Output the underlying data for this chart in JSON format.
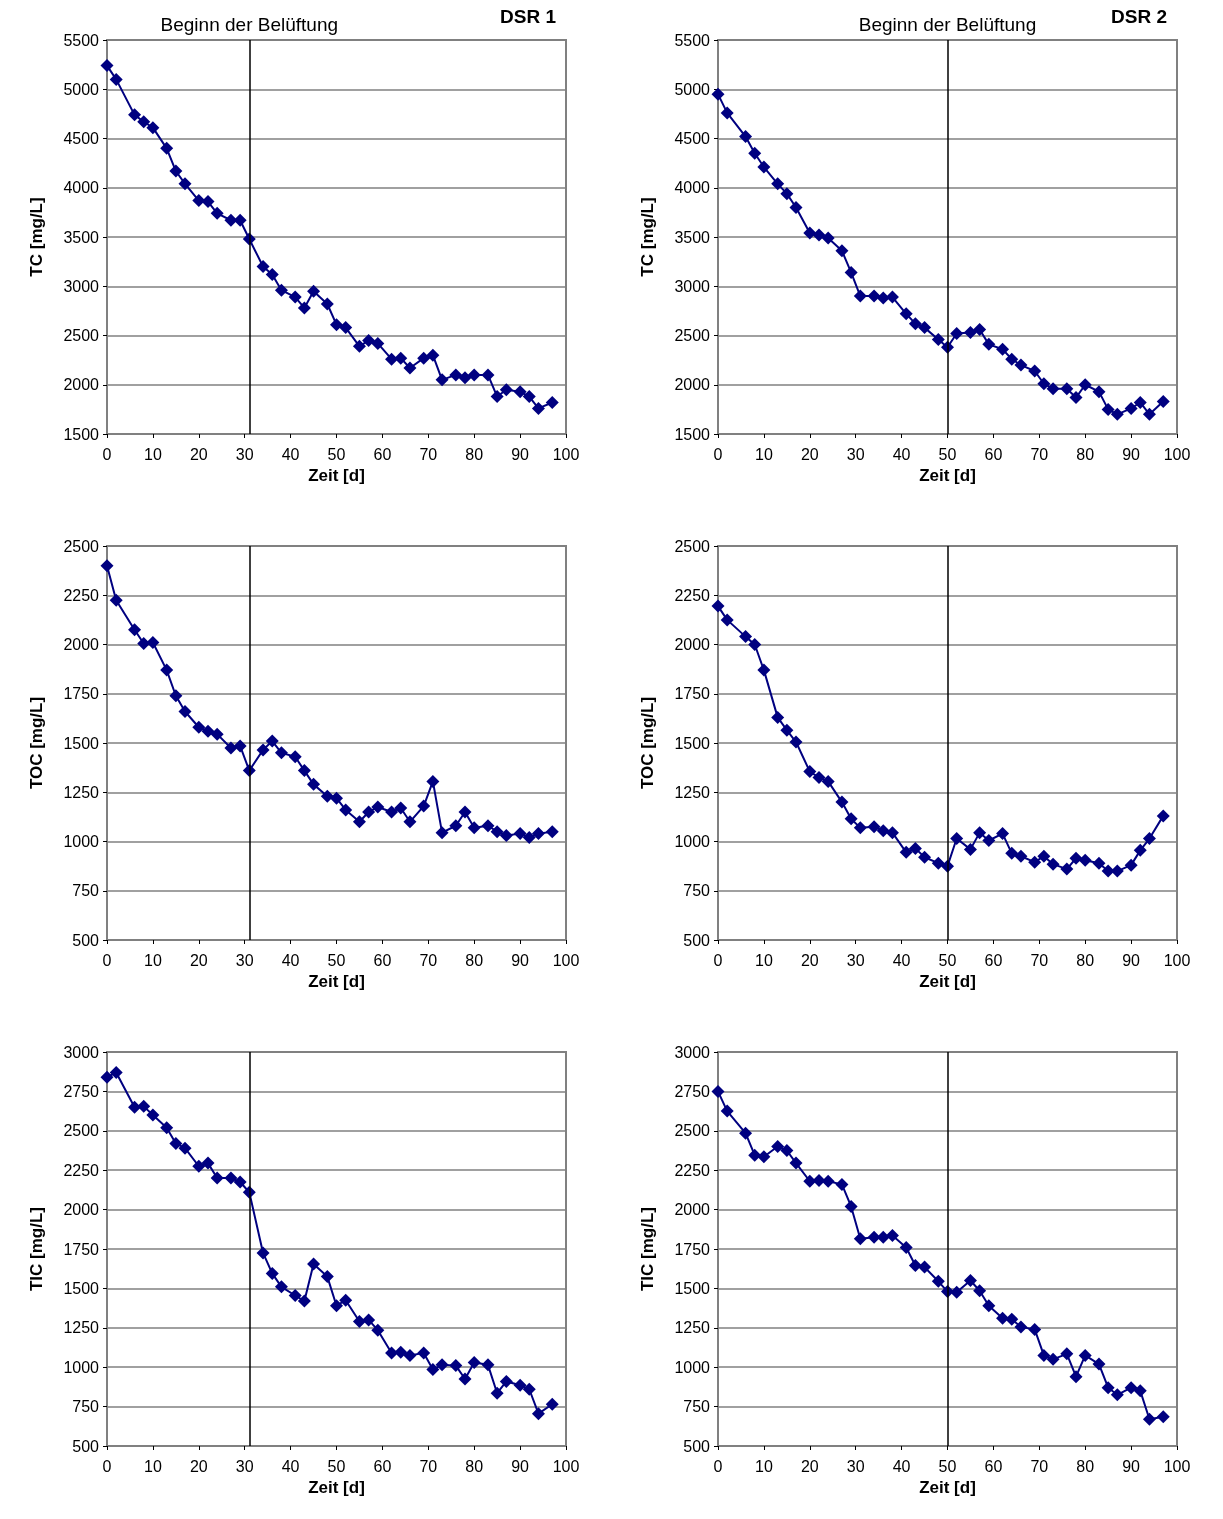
{
  "chart_data": [
    {
      "type": "line",
      "title": "DSR 1",
      "xlabel": "Zeit [d]",
      "ylabel": "TC [mg/L]",
      "color": "#000080",
      "marker": "diamond",
      "grid": "y",
      "x": [
        0,
        2,
        6,
        8,
        10,
        13,
        15,
        17,
        20,
        22,
        24,
        27,
        29,
        31,
        34,
        36,
        38,
        41,
        43,
        45,
        48,
        50,
        52,
        55,
        57,
        59,
        62,
        64,
        66,
        69,
        71,
        73,
        76,
        78,
        80,
        83,
        85,
        87,
        90,
        92,
        94,
        97
      ],
      "values": [
        5240,
        5100,
        4740,
        4670,
        4610,
        4400,
        4170,
        4040,
        3870,
        3860,
        3740,
        3670,
        3670,
        3480,
        3200,
        3120,
        2960,
        2890,
        2780,
        2950,
        2820,
        2610,
        2580,
        2390,
        2450,
        2420,
        2260,
        2270,
        2170,
        2270,
        2300,
        2050,
        2100,
        2070,
        2100,
        2100,
        1880,
        1950,
        1930,
        1880,
        1760,
        1820
      ],
      "xlim": [
        0,
        100
      ],
      "xticks": [
        0,
        10,
        20,
        30,
        40,
        50,
        60,
        70,
        80,
        90,
        100
      ],
      "ylim": [
        1500,
        5500
      ],
      "yticks": [
        1500,
        2000,
        2500,
        3000,
        3500,
        4000,
        4500,
        5000,
        5500
      ],
      "ref_lines": [
        {
          "axis": "x",
          "value": 31,
          "label": "Beginn der Belüftung",
          "color": "#000000"
        }
      ]
    },
    {
      "type": "line",
      "title": "DSR 2",
      "xlabel": "Zeit [d]",
      "ylabel": "TC [mg/L]",
      "color": "#000080",
      "marker": "diamond",
      "grid": "y",
      "x": [
        0,
        2,
        6,
        8,
        10,
        13,
        15,
        17,
        20,
        22,
        24,
        27,
        29,
        31,
        34,
        36,
        38,
        41,
        43,
        45,
        48,
        50,
        52,
        55,
        57,
        59,
        62,
        64,
        66,
        69,
        71,
        73,
        76,
        78,
        80,
        83,
        85,
        87,
        90,
        92,
        94,
        97
      ],
      "values": [
        4950,
        4760,
        4520,
        4350,
        4210,
        4040,
        3940,
        3800,
        3540,
        3520,
        3490,
        3360,
        3140,
        2900,
        2900,
        2880,
        2890,
        2720,
        2620,
        2580,
        2460,
        2380,
        2520,
        2530,
        2560,
        2410,
        2360,
        2260,
        2200,
        2140,
        2010,
        1960,
        1960,
        1870,
        2000,
        1930,
        1750,
        1700,
        1760,
        1820,
        1700,
        1830
      ],
      "xlim": [
        0,
        100
      ],
      "xticks": [
        0,
        10,
        20,
        30,
        40,
        50,
        60,
        70,
        80,
        90,
        100
      ],
      "ylim": [
        1500,
        5500
      ],
      "yticks": [
        1500,
        2000,
        2500,
        3000,
        3500,
        4000,
        4500,
        5000,
        5500
      ],
      "ref_lines": [
        {
          "axis": "x",
          "value": 50,
          "label": "Beginn der Belüftung",
          "color": "#000000"
        }
      ]
    },
    {
      "type": "line",
      "xlabel": "Zeit [d]",
      "ylabel": "TOC [mg/L]",
      "color": "#000080",
      "marker": "diamond",
      "grid": "y",
      "x": [
        0,
        2,
        6,
        8,
        10,
        13,
        15,
        17,
        20,
        22,
        24,
        27,
        29,
        31,
        34,
        36,
        38,
        41,
        43,
        45,
        48,
        50,
        52,
        55,
        57,
        59,
        62,
        64,
        66,
        69,
        71,
        73,
        76,
        78,
        80,
        83,
        85,
        87,
        90,
        92,
        94,
        97
      ],
      "values": [
        2400,
        2225,
        2075,
        2005,
        2010,
        1870,
        1740,
        1660,
        1580,
        1560,
        1545,
        1475,
        1485,
        1360,
        1465,
        1510,
        1450,
        1430,
        1360,
        1290,
        1230,
        1220,
        1160,
        1100,
        1150,
        1175,
        1150,
        1170,
        1100,
        1180,
        1305,
        1045,
        1080,
        1150,
        1070,
        1080,
        1050,
        1030,
        1040,
        1020,
        1040,
        1050
      ],
      "xlim": [
        0,
        100
      ],
      "xticks": [
        0,
        10,
        20,
        30,
        40,
        50,
        60,
        70,
        80,
        90,
        100
      ],
      "ylim": [
        500,
        2500
      ],
      "yticks": [
        500,
        750,
        1000,
        1250,
        1500,
        1750,
        2000,
        2250,
        2500
      ],
      "ref_lines": [
        {
          "axis": "x",
          "value": 31,
          "color": "#000000"
        }
      ]
    },
    {
      "type": "line",
      "xlabel": "Zeit [d]",
      "ylabel": "TOC [mg/L]",
      "color": "#000080",
      "marker": "diamond",
      "grid": "y",
      "x": [
        0,
        2,
        6,
        8,
        10,
        13,
        15,
        17,
        20,
        22,
        24,
        27,
        29,
        31,
        34,
        36,
        38,
        41,
        43,
        45,
        48,
        50,
        52,
        55,
        57,
        59,
        62,
        64,
        66,
        69,
        71,
        73,
        76,
        78,
        80,
        83,
        85,
        87,
        90,
        92,
        94,
        97
      ],
      "values": [
        2195,
        2125,
        2040,
        2000,
        1870,
        1630,
        1565,
        1505,
        1355,
        1325,
        1305,
        1200,
        1115,
        1070,
        1075,
        1055,
        1045,
        945,
        965,
        920,
        890,
        875,
        1015,
        960,
        1045,
        1005,
        1040,
        940,
        925,
        895,
        925,
        885,
        860,
        915,
        905,
        890,
        850,
        850,
        880,
        955,
        1015,
        1130
      ],
      "xlim": [
        0,
        100
      ],
      "xticks": [
        0,
        10,
        20,
        30,
        40,
        50,
        60,
        70,
        80,
        90,
        100
      ],
      "ylim": [
        500,
        2500
      ],
      "yticks": [
        500,
        750,
        1000,
        1250,
        1500,
        1750,
        2000,
        2250,
        2500
      ],
      "ref_lines": [
        {
          "axis": "x",
          "value": 50,
          "color": "#000000"
        }
      ]
    },
    {
      "type": "line",
      "xlabel": "Zeit [d]",
      "ylabel": "TIC [mg/L]",
      "color": "#000080",
      "marker": "diamond",
      "grid": "y",
      "x": [
        0,
        2,
        6,
        8,
        10,
        13,
        15,
        17,
        20,
        22,
        24,
        27,
        29,
        31,
        34,
        36,
        38,
        41,
        43,
        45,
        48,
        50,
        52,
        55,
        57,
        59,
        62,
        64,
        66,
        69,
        71,
        73,
        76,
        78,
        80,
        83,
        85,
        87,
        90,
        92,
        94,
        97
      ],
      "values": [
        2840,
        2870,
        2650,
        2655,
        2600,
        2520,
        2420,
        2390,
        2275,
        2295,
        2200,
        2200,
        2175,
        2110,
        1725,
        1595,
        1510,
        1455,
        1420,
        1655,
        1575,
        1390,
        1425,
        1290,
        1300,
        1235,
        1090,
        1095,
        1075,
        1090,
        985,
        1015,
        1010,
        925,
        1030,
        1015,
        835,
        910,
        885,
        860,
        705,
        765
      ],
      "xlim": [
        0,
        100
      ],
      "xticks": [
        0,
        10,
        20,
        30,
        40,
        50,
        60,
        70,
        80,
        90,
        100
      ],
      "ylim": [
        500,
        3000
      ],
      "yticks": [
        500,
        750,
        1000,
        1250,
        1500,
        1750,
        2000,
        2250,
        2500,
        2750,
        3000
      ],
      "ref_lines": [
        {
          "axis": "x",
          "value": 31,
          "color": "#000000"
        }
      ]
    },
    {
      "type": "line",
      "xlabel": "Zeit [d]",
      "ylabel": "TIC [mg/L]",
      "color": "#000080",
      "marker": "diamond",
      "grid": "y",
      "x": [
        0,
        2,
        6,
        8,
        10,
        13,
        15,
        17,
        20,
        22,
        24,
        27,
        29,
        31,
        34,
        36,
        38,
        41,
        43,
        45,
        48,
        50,
        52,
        55,
        57,
        59,
        62,
        64,
        66,
        69,
        71,
        73,
        76,
        78,
        80,
        83,
        85,
        87,
        90,
        92,
        94,
        97
      ],
      "values": [
        2750,
        2625,
        2485,
        2345,
        2335,
        2400,
        2375,
        2295,
        2180,
        2185,
        2180,
        2160,
        2020,
        1815,
        1825,
        1825,
        1835,
        1760,
        1645,
        1635,
        1545,
        1480,
        1475,
        1550,
        1485,
        1390,
        1310,
        1305,
        1255,
        1240,
        1075,
        1050,
        1085,
        940,
        1075,
        1020,
        870,
        825,
        870,
        850,
        670,
        685
      ],
      "xlim": [
        0,
        100
      ],
      "xticks": [
        0,
        10,
        20,
        30,
        40,
        50,
        60,
        70,
        80,
        90,
        100
      ],
      "ylim": [
        500,
        3000
      ],
      "yticks": [
        500,
        750,
        1000,
        1250,
        1500,
        1750,
        2000,
        2250,
        2500,
        2750,
        3000
      ],
      "ref_lines": [
        {
          "axis": "x",
          "value": 50,
          "color": "#000000"
        }
      ]
    }
  ]
}
